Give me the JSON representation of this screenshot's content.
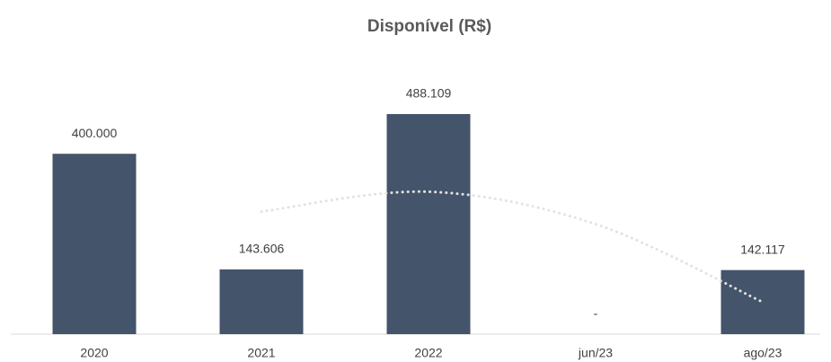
{
  "chart_data": {
    "type": "bar",
    "title": "Disponível (R$)",
    "categories": [
      "2020",
      "2021",
      "2022",
      "jun/23",
      "ago/23"
    ],
    "values": [
      400000,
      143606,
      488109,
      0,
      142117
    ],
    "value_labels": [
      "400.000",
      "143.606",
      "488.109",
      "-",
      "142.117"
    ],
    "color": "#44546a",
    "trendline": {
      "color": "#e2e2e2",
      "values": [
        null,
        271803,
        315857.5,
        244054.5,
        71058.5
      ]
    },
    "ylim": [
      0,
      500000
    ]
  }
}
